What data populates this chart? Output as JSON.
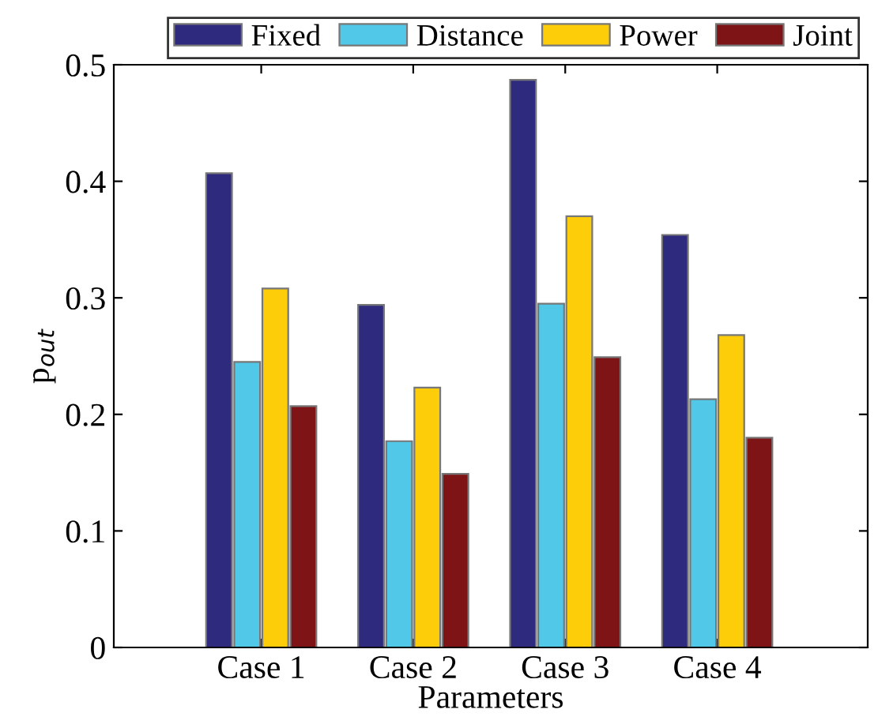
{
  "chart_data": {
    "type": "bar",
    "xlabel": "Parameters",
    "ylabel": "p$_{out}$",
    "categories": [
      "Case 1",
      "Case 2",
      "Case 3",
      "Case 4"
    ],
    "series": [
      {
        "name": "Fixed",
        "color": "#2e2b7e",
        "values": [
          0.407,
          0.294,
          0.487,
          0.354
        ]
      },
      {
        "name": "Distance",
        "color": "#52c8e8",
        "values": [
          0.245,
          0.177,
          0.295,
          0.213
        ]
      },
      {
        "name": "Power",
        "color": "#fdcd0a",
        "values": [
          0.308,
          0.223,
          0.37,
          0.268
        ]
      },
      {
        "name": "Joint",
        "color": "#7f1416",
        "values": [
          0.207,
          0.149,
          0.249,
          0.18
        ]
      }
    ],
    "ylim": [
      0,
      0.5
    ],
    "yticks": [
      0,
      0.1,
      0.2,
      0.3,
      0.4,
      0.5
    ],
    "grid": false,
    "legend": "top"
  }
}
